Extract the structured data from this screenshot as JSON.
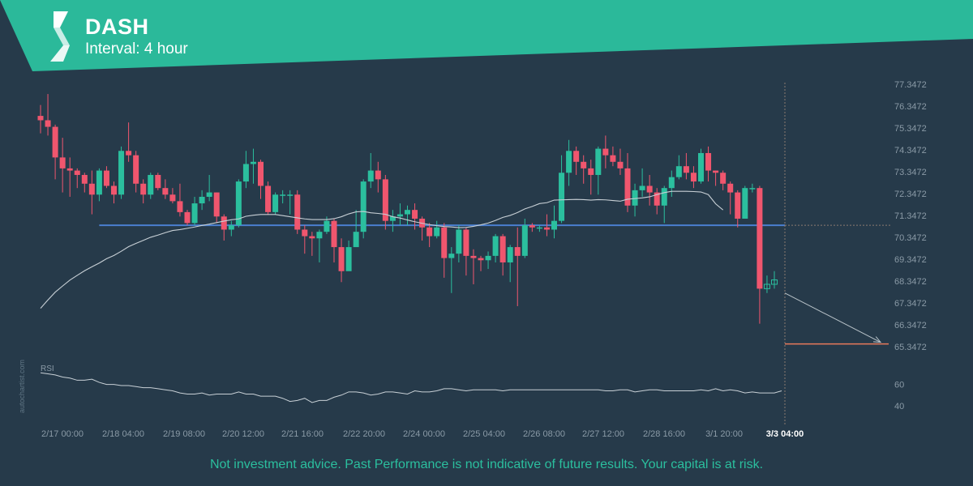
{
  "header": {
    "symbol": "DASH",
    "interval": "Interval: 4 hour",
    "banner_color": "#2bb99a"
  },
  "watermark": "autochartist.com",
  "disclaimer": "Not investment advice. Past Performance is not indicative of future results. Your capital is at risk.",
  "colors": {
    "background": "#263a4a",
    "up_candle": "#2bbf9e",
    "down_candle": "#f0566e",
    "support_line": "#4a7fd0",
    "target_line": "#e8795a",
    "moving_average": "#c8d0d6",
    "grid_text": "#8a9aa6"
  },
  "chart_data": [
    {
      "type": "candlestick",
      "title": "DASH",
      "y_tick_labels": [
        "77.3472",
        "76.3472",
        "75.3472",
        "74.3472",
        "73.3472",
        "72.3472",
        "71.3472",
        "70.3472",
        "69.3472",
        "68.3472",
        "67.3472",
        "66.3472",
        "65.3472"
      ],
      "x_tick_labels": [
        "2/17 00:00",
        "2/18 04:00",
        "2/19 08:00",
        "2/20 12:00",
        "2/21 16:00",
        "2/22 20:00",
        "2/24 00:00",
        "2/25 04:00",
        "2/26 08:00",
        "2/27 12:00",
        "2/28 16:00",
        "3/1 20:00",
        "3/3 04:00"
      ],
      "ylim": [
        64.9,
        77.35
      ],
      "support_level": 70.9,
      "target_level": 65.47,
      "projection": {
        "from": 67.8,
        "to": 65.55
      },
      "current_time_label": "3/3 04:00",
      "candles": [
        [
          75.9,
          75.7,
          76.4,
          75.1
        ],
        [
          75.7,
          75.4,
          76.9,
          75.0
        ],
        [
          75.4,
          74.0,
          75.5,
          73.0
        ],
        [
          74.0,
          73.5,
          74.9,
          72.4
        ],
        [
          73.5,
          73.4,
          74.0,
          72.2
        ],
        [
          73.4,
          73.2,
          73.5,
          72.6
        ],
        [
          73.2,
          72.8,
          73.3,
          72.4
        ],
        [
          72.8,
          72.3,
          73.4,
          71.4
        ],
        [
          72.3,
          73.4,
          73.5,
          72.0
        ],
        [
          73.4,
          72.7,
          73.6,
          72.6
        ],
        [
          72.7,
          72.3,
          72.9,
          71.9
        ],
        [
          72.3,
          74.3,
          74.5,
          72.1
        ],
        [
          74.3,
          74.1,
          75.6,
          73.8
        ],
        [
          74.1,
          72.8,
          74.3,
          72.4
        ],
        [
          72.8,
          72.3,
          73.0,
          71.9
        ],
        [
          72.3,
          73.2,
          73.3,
          72.1
        ],
        [
          73.2,
          72.6,
          73.3,
          72.5
        ],
        [
          72.6,
          72.3,
          73.0,
          72.1
        ],
        [
          72.3,
          72.0,
          72.6,
          71.9
        ],
        [
          72.0,
          71.5,
          72.8,
          71.3
        ],
        [
          71.5,
          71.0,
          71.6,
          70.9
        ],
        [
          71.0,
          71.9,
          72.2,
          70.9
        ],
        [
          71.9,
          72.2,
          72.5,
          71.6
        ],
        [
          72.2,
          72.4,
          73.2,
          72.0
        ],
        [
          72.4,
          71.3,
          72.4,
          71.0
        ],
        [
          71.3,
          70.7,
          71.4,
          70.2
        ],
        [
          70.7,
          70.9,
          71.1,
          70.4
        ],
        [
          70.9,
          72.9,
          73.0,
          70.8
        ],
        [
          72.9,
          73.7,
          74.3,
          72.6
        ],
        [
          73.7,
          73.8,
          74.4,
          72.8
        ],
        [
          73.8,
          72.7,
          73.9,
          72.1
        ],
        [
          72.7,
          71.5,
          72.9,
          71.4
        ],
        [
          71.5,
          72.3,
          72.4,
          71.4
        ],
        [
          72.3,
          72.3,
          72.5,
          71.9
        ],
        [
          72.3,
          72.3,
          72.5,
          71.4
        ],
        [
          72.3,
          70.7,
          72.5,
          70.5
        ],
        [
          70.7,
          70.4,
          70.9,
          69.6
        ],
        [
          70.4,
          70.3,
          70.6,
          69.5
        ],
        [
          70.3,
          70.6,
          70.7,
          69.2
        ],
        [
          70.6,
          71.1,
          71.3,
          70.5
        ],
        [
          71.1,
          69.9,
          71.2,
          69.2
        ],
        [
          69.9,
          68.8,
          70.3,
          68.3
        ],
        [
          68.8,
          69.9,
          70.2,
          68.9
        ],
        [
          69.9,
          70.6,
          71.6,
          70.0
        ],
        [
          70.6,
          72.9,
          73.0,
          70.3
        ],
        [
          72.9,
          73.4,
          74.2,
          72.6
        ],
        [
          73.4,
          73.0,
          73.8,
          72.4
        ],
        [
          73.0,
          71.1,
          73.2,
          70.7
        ],
        [
          71.1,
          71.3,
          71.6,
          70.6
        ],
        [
          71.3,
          71.4,
          71.9,
          70.9
        ],
        [
          71.4,
          71.6,
          71.8,
          70.9
        ],
        [
          71.6,
          71.2,
          71.9,
          70.7
        ],
        [
          71.2,
          70.8,
          71.3,
          70.2
        ],
        [
          70.8,
          70.4,
          71.0,
          69.9
        ],
        [
          70.4,
          70.8,
          71.1,
          70.3
        ],
        [
          70.8,
          69.4,
          71.0,
          68.5
        ],
        [
          69.4,
          69.6,
          69.9,
          67.8
        ],
        [
          69.6,
          70.7,
          70.9,
          69.2
        ],
        [
          70.7,
          69.5,
          70.8,
          68.6
        ],
        [
          69.5,
          69.4,
          69.8,
          68.2
        ],
        [
          69.4,
          69.3,
          69.5,
          68.8
        ],
        [
          69.3,
          69.5,
          69.7,
          68.9
        ],
        [
          69.5,
          70.4,
          70.5,
          69.2
        ],
        [
          70.4,
          69.2,
          70.5,
          68.6
        ],
        [
          69.2,
          69.9,
          70.0,
          68.3
        ],
        [
          69.9,
          69.5,
          70.8,
          67.2
        ],
        [
          69.5,
          70.9,
          71.2,
          69.4
        ],
        [
          70.9,
          70.8,
          71.0,
          70.6
        ],
        [
          70.8,
          70.8,
          70.9,
          70.6
        ],
        [
          70.8,
          70.7,
          71.4,
          70.4
        ],
        [
          70.7,
          71.1,
          71.8,
          70.3
        ],
        [
          71.1,
          73.3,
          74.1,
          71.0
        ],
        [
          73.3,
          74.3,
          74.8,
          72.7
        ],
        [
          74.3,
          73.8,
          74.5,
          73.2
        ],
        [
          73.8,
          73.5,
          74.1,
          72.8
        ],
        [
          73.5,
          73.2,
          73.9,
          72.3
        ],
        [
          73.2,
          74.4,
          74.5,
          72.3
        ],
        [
          74.4,
          74.1,
          75.0,
          73.5
        ],
        [
          74.1,
          73.8,
          74.5,
          73.6
        ],
        [
          73.8,
          73.5,
          74.4,
          73.2
        ],
        [
          73.5,
          71.8,
          74.2,
          71.5
        ],
        [
          71.8,
          72.5,
          72.8,
          71.3
        ],
        [
          72.5,
          72.7,
          73.5,
          72.2
        ],
        [
          72.7,
          72.4,
          73.2,
          71.8
        ],
        [
          72.4,
          71.8,
          72.6,
          71.4
        ],
        [
          71.8,
          72.6,
          72.7,
          71.0
        ],
        [
          72.6,
          73.1,
          73.4,
          72.2
        ],
        [
          73.1,
          73.6,
          74.1,
          73.0
        ],
        [
          73.6,
          73.3,
          74.2,
          73.0
        ],
        [
          73.3,
          72.9,
          73.6,
          72.6
        ],
        [
          72.9,
          74.2,
          74.4,
          72.8
        ],
        [
          74.2,
          73.4,
          74.5,
          72.9
        ],
        [
          73.4,
          73.3,
          73.4,
          72.7
        ],
        [
          73.3,
          72.8,
          73.4,
          72.5
        ],
        [
          72.8,
          72.4,
          72.9,
          71.4
        ],
        [
          72.4,
          71.2,
          72.5,
          70.8
        ],
        [
          71.2,
          72.6,
          72.7,
          71.4
        ],
        [
          72.6,
          72.6,
          72.8,
          72.4
        ],
        [
          72.6,
          68.0,
          72.7,
          66.4
        ],
        [
          68.0,
          68.2,
          68.6,
          67.8
        ],
        [
          68.2,
          68.4,
          68.8,
          68.0
        ]
      ],
      "moving_average": [
        67.1,
        67.48,
        67.84,
        68.12,
        68.39,
        68.61,
        68.82,
        69.0,
        69.17,
        69.37,
        69.52,
        69.71,
        69.92,
        70.07,
        70.21,
        70.35,
        70.45,
        70.56,
        70.66,
        70.7,
        70.76,
        70.82,
        70.89,
        70.95,
        71.02,
        71.09,
        71.15,
        71.19,
        71.31,
        71.36,
        71.39,
        71.39,
        71.39,
        71.34,
        71.29,
        71.24,
        71.19,
        71.16,
        71.16,
        71.16,
        71.2,
        71.29,
        71.42,
        71.51,
        71.53,
        71.47,
        71.44,
        71.4,
        71.29,
        71.23,
        71.14,
        71.06,
        70.99,
        70.93,
        70.88,
        70.84,
        70.82,
        70.79,
        70.8,
        70.85,
        70.92,
        71.0,
        71.12,
        71.26,
        71.35,
        71.48,
        71.65,
        71.76,
        71.89,
        71.93,
        72.05,
        72.06,
        72.07,
        72.08,
        72.07,
        72.05,
        72.07,
        72.06,
        72.03,
        72.0,
        72.09,
        72.12,
        72.15,
        72.2,
        72.3,
        72.39,
        72.45,
        72.45,
        72.45,
        72.44,
        72.42,
        72.3,
        71.88,
        71.6
      ],
      "indicator": {
        "name": "RSI",
        "y_tick_labels": [
          "60",
          "40"
        ],
        "ylim": [
          30,
          75
        ],
        "values": [
          71,
          70,
          69,
          67,
          66,
          64,
          64,
          65,
          62,
          60,
          60,
          59,
          59,
          58,
          57,
          57,
          56,
          55,
          54,
          52,
          51,
          51,
          52,
          50,
          51,
          51,
          51,
          53,
          51,
          51,
          49,
          49,
          49,
          47,
          44,
          45,
          47,
          43,
          45,
          45,
          48,
          50,
          53,
          53,
          52,
          50,
          51,
          53,
          53,
          52,
          51,
          54,
          53,
          53,
          54,
          56,
          56,
          55,
          54,
          55,
          55,
          55,
          55,
          54,
          55,
          55,
          55,
          55,
          55,
          55,
          55,
          55,
          55,
          55,
          55,
          55,
          55,
          54,
          54,
          55,
          55,
          53,
          54,
          55,
          55,
          54,
          54,
          54,
          54,
          54,
          55,
          54,
          56,
          54,
          55,
          54,
          52,
          53,
          52,
          52,
          52,
          54
        ]
      }
    }
  ]
}
